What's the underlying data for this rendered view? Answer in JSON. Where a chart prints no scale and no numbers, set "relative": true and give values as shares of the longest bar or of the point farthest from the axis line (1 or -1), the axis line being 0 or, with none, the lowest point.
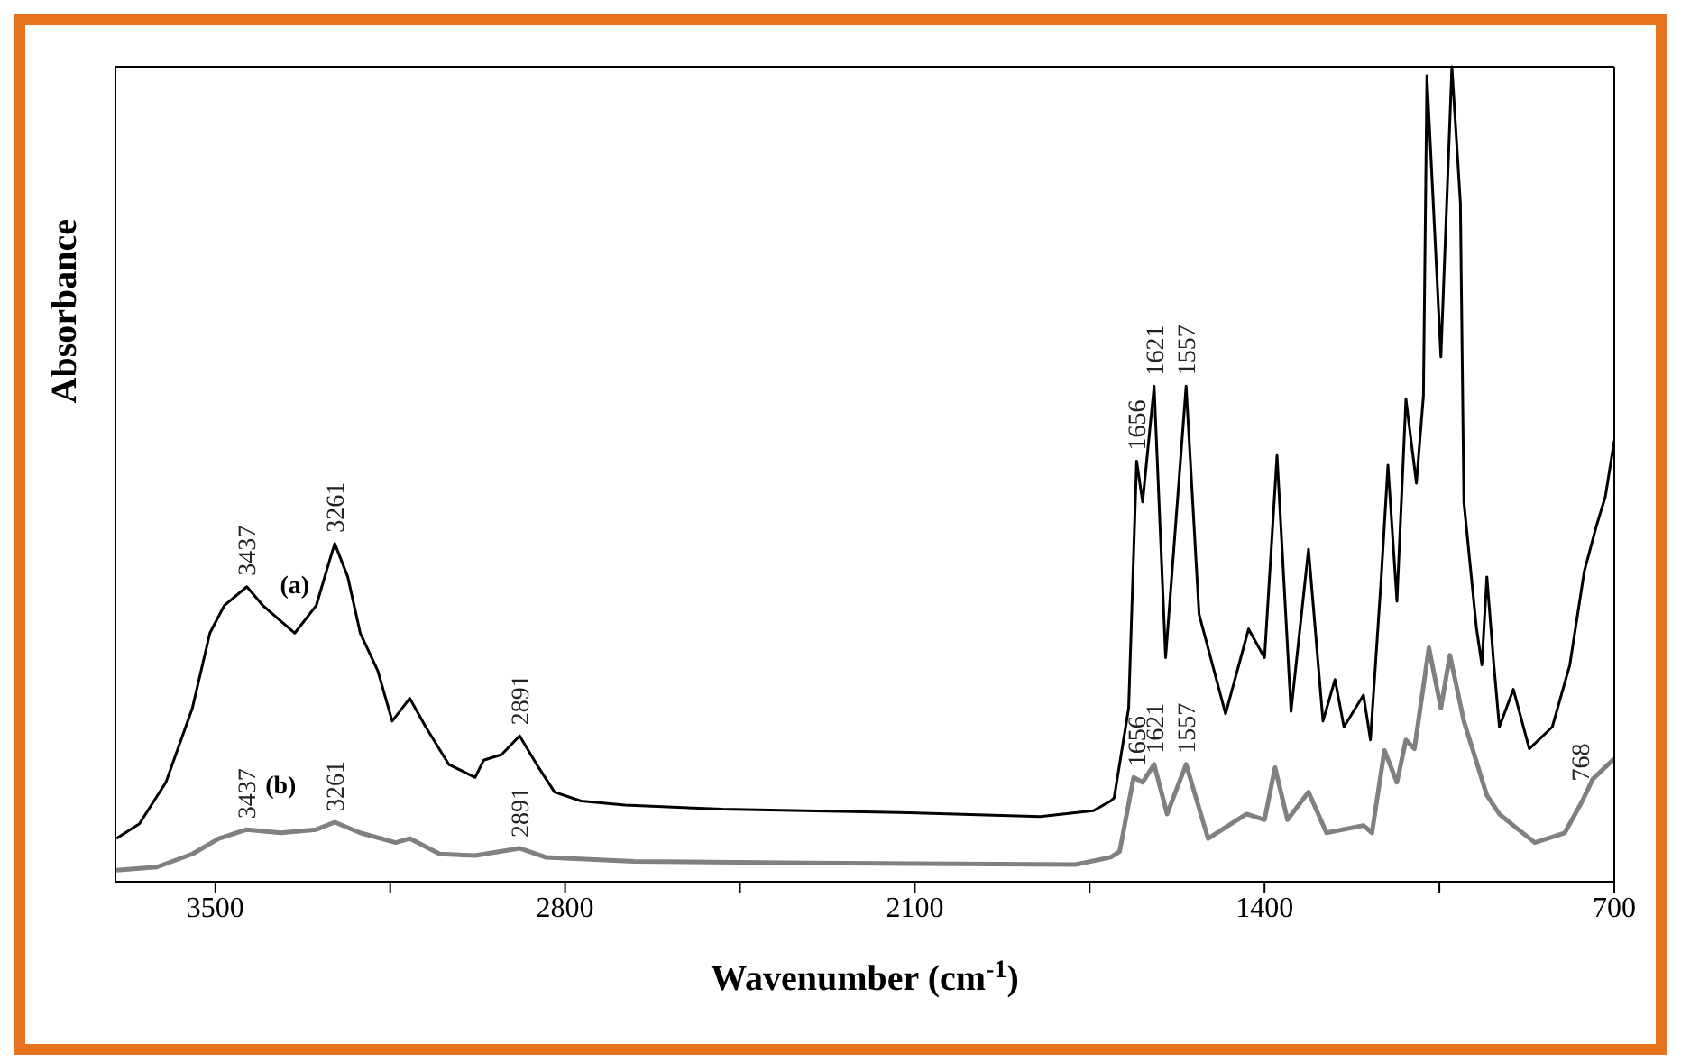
{
  "chart_data": {
    "type": "line",
    "relative": true,
    "xlabel": "Wavenumber (cm$^{-1}$)",
    "ylabel": "Absorbance",
    "xlim": [
      3700,
      700
    ],
    "xticks": [
      3500,
      {
        "value": 3150,
        "label": null
      },
      2800,
      {
        "value": 2450,
        "label": null
      },
      2100,
      {
        "value": 1750,
        "label": null
      },
      1400,
      {
        "value": 1050,
        "label": null
      },
      700
    ],
    "marker": "none",
    "line_style": "solid",
    "series": [
      {
        "name": "(a)",
        "color": "#000000",
        "x": [
          3698,
          3652,
          3599,
          3546,
          3511,
          3482,
          3437,
          3405,
          3341,
          3298,
          3270,
          3261,
          3235,
          3210,
          3175,
          3146,
          3111,
          3079,
          3033,
          2980,
          2963,
          2927,
          2891,
          2857,
          2821,
          2768,
          2680,
          2485,
          2132,
          1849,
          1743,
          1708,
          1701,
          1672,
          1656,
          1644,
          1621,
          1598,
          1557,
          1531,
          1478,
          1432,
          1400,
          1375,
          1347,
          1312,
          1283,
          1259,
          1241,
          1202,
          1188,
          1167,
          1153,
          1135,
          1117,
          1096,
          1082,
          1075,
          1047,
          1025,
          1008,
          1001,
          976,
          965,
          955,
          941,
          930,
          902,
          870,
          824,
          789,
          760,
          736,
          718,
          700
        ],
        "values": [
          0.053,
          0.071,
          0.122,
          0.213,
          0.305,
          0.339,
          0.362,
          0.339,
          0.305,
          0.339,
          0.397,
          0.415,
          0.374,
          0.305,
          0.259,
          0.197,
          0.225,
          0.19,
          0.144,
          0.128,
          0.149,
          0.156,
          0.179,
          0.144,
          0.11,
          0.099,
          0.094,
          0.089,
          0.085,
          0.08,
          0.087,
          0.099,
          0.103,
          0.213,
          0.516,
          0.466,
          0.608,
          0.275,
          0.608,
          0.328,
          0.206,
          0.31,
          0.275,
          0.523,
          0.209,
          0.408,
          0.197,
          0.248,
          0.19,
          0.229,
          0.174,
          0.367,
          0.511,
          0.344,
          0.592,
          0.489,
          0.596,
          0.989,
          0.644,
          1,
          0.833,
          0.466,
          0.312,
          0.266,
          0.374,
          0.266,
          0.19,
          0.236,
          0.163,
          0.19,
          0.266,
          0.381,
          0.436,
          0.472,
          0.541
        ]
      },
      {
        "name": "(b)",
        "color": "#808080",
        "x": [
          3698,
          3617,
          3546,
          3493,
          3437,
          3369,
          3298,
          3261,
          3210,
          3139,
          3111,
          3051,
          2980,
          2891,
          2839,
          2662,
          2309,
          1778,
          1708,
          1690,
          1662,
          1644,
          1621,
          1595,
          1557,
          1513,
          1436,
          1400,
          1379,
          1354,
          1312,
          1276,
          1202,
          1185,
          1160,
          1135,
          1117,
          1100,
          1071,
          1047,
          1029,
          1001,
          955,
          930,
          902,
          859,
          799,
          764,
          743,
          700
        ],
        "values": [
          0.014,
          0.018,
          0.034,
          0.053,
          0.064,
          0.06,
          0.064,
          0.073,
          0.06,
          0.048,
          0.053,
          0.034,
          0.032,
          0.041,
          0.03,
          0.025,
          0.023,
          0.021,
          0.03,
          0.037,
          0.128,
          0.122,
          0.144,
          0.083,
          0.144,
          0.053,
          0.083,
          0.076,
          0.14,
          0.076,
          0.11,
          0.06,
          0.069,
          0.06,
          0.161,
          0.122,
          0.174,
          0.163,
          0.287,
          0.213,
          0.278,
          0.197,
          0.106,
          0.083,
          0.069,
          0.048,
          0.06,
          0.099,
          0.126,
          0.151
        ]
      }
    ],
    "annotations": [
      {
        "text": "3437",
        "x": 3437,
        "y": 0.362
      },
      {
        "text": "3261",
        "x": 3261,
        "y": 0.415
      },
      {
        "text": "2891",
        "x": 2891,
        "y": 0.179
      },
      {
        "text": "1656",
        "x": 1656,
        "y": 0.516
      },
      {
        "text": "1621",
        "x": 1621,
        "y": 0.608
      },
      {
        "text": "1557",
        "x": 1557,
        "y": 0.608
      },
      {
        "text": "3437",
        "x": 3437,
        "y": 0.064
      },
      {
        "text": "3261",
        "x": 3261,
        "y": 0.073
      },
      {
        "text": "2891",
        "x": 2891,
        "y": 0.041
      },
      {
        "text": "1656",
        "x": 1656,
        "y": 0.128
      },
      {
        "text": "1621",
        "x": 1621,
        "y": 0.144
      },
      {
        "text": "1557",
        "x": 1557,
        "y": 0.144
      },
      {
        "text": "768",
        "x": 768,
        "y": 0.11
      }
    ]
  }
}
